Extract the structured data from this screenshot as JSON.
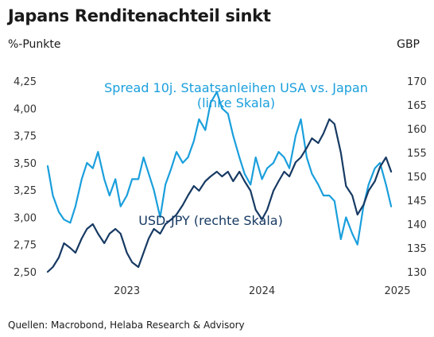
{
  "chart_data": {
    "type": "line",
    "title": "Japans Renditenachteil sinkt",
    "ylabel_left": "%-Punkte",
    "ylabel_right": "GBP",
    "source": "Quellen: Macrobond, Helaba Research & Advisory",
    "x_ticks": [
      "2023",
      "2024",
      "2025"
    ],
    "y_left_ticks": [
      "4,25",
      "4,00",
      "3,75",
      "3,50",
      "3,25",
      "3,00",
      "2,75",
      "2,50"
    ],
    "y_right_ticks": [
      "170",
      "165",
      "160",
      "155",
      "150",
      "145",
      "140",
      "135",
      "130"
    ],
    "ylim_left": [
      2.5,
      4.25
    ],
    "ylim_right": [
      130,
      170
    ],
    "xlim": [
      "2022-06-01",
      "2025-01-01"
    ],
    "grid": false,
    "colors": {
      "spread": "#1a9fdc",
      "usdjpy": "#173a63"
    },
    "series": [
      {
        "name": "Spread 10j. Staatsanleihen USA vs. Japan (linke Skala)",
        "label_lines": [
          "Spread 10j. Staatsanleihen USA vs. Japan",
          "(linke Skala)"
        ],
        "axis": "left",
        "x": [
          "2022-06-01",
          "2022-06-15",
          "2022-07-01",
          "2022-07-15",
          "2022-08-01",
          "2022-08-15",
          "2022-09-01",
          "2022-09-15",
          "2022-10-01",
          "2022-10-15",
          "2022-11-01",
          "2022-11-15",
          "2022-12-01",
          "2022-12-15",
          "2023-01-01",
          "2023-01-15",
          "2023-02-01",
          "2023-02-15",
          "2023-03-01",
          "2023-03-15",
          "2023-04-01",
          "2023-04-15",
          "2023-05-01",
          "2023-05-15",
          "2023-06-01",
          "2023-06-15",
          "2023-07-01",
          "2023-07-15",
          "2023-08-01",
          "2023-08-15",
          "2023-09-01",
          "2023-09-15",
          "2023-10-01",
          "2023-10-15",
          "2023-11-01",
          "2023-11-15",
          "2023-12-01",
          "2023-12-15",
          "2024-01-01",
          "2024-01-15",
          "2024-02-01",
          "2024-02-15",
          "2024-03-01",
          "2024-03-15",
          "2024-04-01",
          "2024-04-15",
          "2024-05-01",
          "2024-05-15",
          "2024-06-01",
          "2024-06-15",
          "2024-07-01",
          "2024-07-15",
          "2024-08-01",
          "2024-08-15",
          "2024-09-01",
          "2024-09-15",
          "2024-10-01",
          "2024-10-15",
          "2024-11-01",
          "2024-11-15",
          "2024-12-01",
          "2024-12-15"
        ],
        "values": [
          3.47,
          3.2,
          3.05,
          2.98,
          2.95,
          3.1,
          3.35,
          3.5,
          3.45,
          3.6,
          3.35,
          3.2,
          3.35,
          3.1,
          3.2,
          3.35,
          3.35,
          3.55,
          3.4,
          3.25,
          3.0,
          3.3,
          3.45,
          3.6,
          3.5,
          3.55,
          3.7,
          3.9,
          3.8,
          4.05,
          4.15,
          4.0,
          3.95,
          3.75,
          3.55,
          3.4,
          3.3,
          3.55,
          3.35,
          3.45,
          3.5,
          3.6,
          3.55,
          3.45,
          3.75,
          3.9,
          3.55,
          3.4,
          3.3,
          3.2,
          3.2,
          3.15,
          2.8,
          3.0,
          2.85,
          2.75,
          3.1,
          3.3,
          3.45,
          3.5,
          3.3,
          3.1
        ]
      },
      {
        "name": "USD-JPY (rechte Skala)",
        "label_lines": [
          "USD-JPY (rechte Skala)"
        ],
        "axis": "right",
        "x": [
          "2022-06-01",
          "2022-06-15",
          "2022-07-01",
          "2022-07-15",
          "2022-08-01",
          "2022-08-15",
          "2022-09-01",
          "2022-09-15",
          "2022-10-01",
          "2022-10-15",
          "2022-11-01",
          "2022-11-15",
          "2022-12-01",
          "2022-12-15",
          "2023-01-01",
          "2023-01-15",
          "2023-02-01",
          "2023-02-15",
          "2023-03-01",
          "2023-03-15",
          "2023-04-01",
          "2023-04-15",
          "2023-05-01",
          "2023-05-15",
          "2023-06-01",
          "2023-06-15",
          "2023-07-01",
          "2023-07-15",
          "2023-08-01",
          "2023-08-15",
          "2023-09-01",
          "2023-09-15",
          "2023-10-01",
          "2023-10-15",
          "2023-11-01",
          "2023-11-15",
          "2023-12-01",
          "2023-12-15",
          "2024-01-01",
          "2024-01-15",
          "2024-02-01",
          "2024-02-15",
          "2024-03-01",
          "2024-03-15",
          "2024-04-01",
          "2024-04-15",
          "2024-05-01",
          "2024-05-15",
          "2024-06-01",
          "2024-06-15",
          "2024-07-01",
          "2024-07-15",
          "2024-08-01",
          "2024-08-15",
          "2024-09-01",
          "2024-09-15",
          "2024-10-01",
          "2024-10-15",
          "2024-11-01",
          "2024-11-15",
          "2024-12-01",
          "2024-12-15"
        ],
        "values": [
          130,
          131,
          133,
          136,
          135,
          134,
          137,
          139,
          140,
          138,
          136,
          138,
          139,
          138,
          134,
          132,
          131,
          134,
          137,
          139,
          138,
          140,
          141,
          142,
          144,
          146,
          148,
          147,
          149,
          150,
          151,
          150,
          151,
          149,
          151,
          149,
          147,
          143,
          141,
          143,
          147,
          149,
          151,
          150,
          153,
          154,
          156,
          158,
          157,
          159,
          162,
          161,
          155,
          148,
          146,
          142,
          144,
          147,
          149,
          152,
          154,
          151
        ]
      }
    ]
  }
}
